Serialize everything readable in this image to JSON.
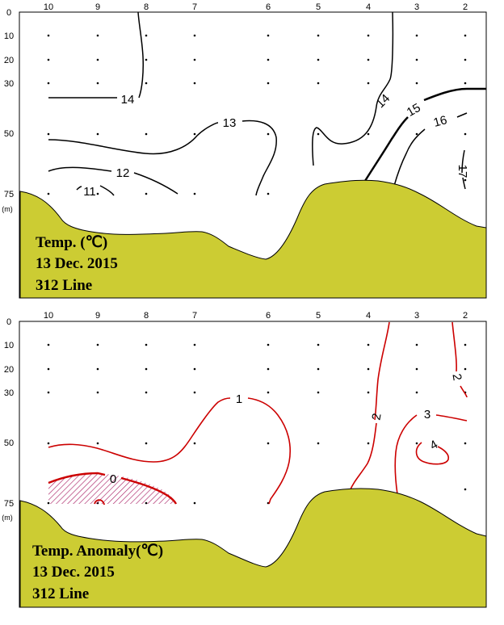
{
  "panels": [
    {
      "stations": [
        "10",
        "9",
        "8",
        "7",
        "6",
        "5",
        "4",
        "3",
        "2"
      ],
      "depths": [
        "0",
        "10",
        "20",
        "30",
        "50",
        "75"
      ],
      "unit": "(m)",
      "title_line1": "Temp. (℃)",
      "title_line2": "13  Dec. 2015",
      "title_line3": "312 Line",
      "contour_labels": [
        "14",
        "13",
        "12",
        "11",
        "14",
        "15",
        "16",
        "17"
      ]
    },
    {
      "stations": [
        "10",
        "9",
        "8",
        "7",
        "6",
        "5",
        "4",
        "3",
        "2"
      ],
      "depths": [
        "0",
        "10",
        "20",
        "30",
        "50",
        "75"
      ],
      "unit": "(m)",
      "title_line1": "Temp. Anomaly(℃)",
      "title_line2": "13  Dec. 2015",
      "title_line3": "312 Line",
      "contour_labels": [
        "1",
        "0",
        "2",
        "3",
        "4",
        "2"
      ]
    }
  ],
  "colors": {
    "seabed": "#cccc33",
    "contour_temp": "#000000",
    "contour_anomaly": "#cc0000",
    "hatch": "#aa2266"
  }
}
